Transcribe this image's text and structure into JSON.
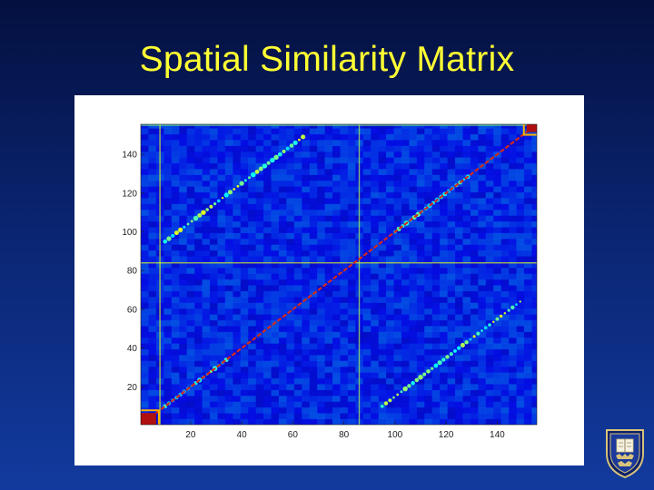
{
  "slide": {
    "title": "Spatial Similarity Matrix"
  },
  "colors": {
    "title": "#ffff33",
    "matrix_background": "#0a1fbe",
    "diagonal": "#d42a1a",
    "block_high": "#b01010"
  },
  "chart_data": {
    "type": "heatmap",
    "title": "",
    "xlabel": "",
    "ylabel": "",
    "colormap": "jet",
    "matrix_size": 155,
    "xlim": [
      0.5,
      155.5
    ],
    "ylim": [
      0.5,
      155.5
    ],
    "x_ticks": [
      20,
      40,
      60,
      80,
      100,
      120,
      140
    ],
    "y_ticks": [
      20,
      40,
      60,
      80,
      100,
      120,
      140
    ],
    "x_tick_labels": [
      "20",
      "40",
      "60",
      "80",
      "100",
      "120",
      "140"
    ],
    "y_tick_labels": [
      "20",
      "40",
      "60",
      "80",
      "100",
      "120",
      "140"
    ],
    "diagonal_value": 1.0,
    "off_diagonal_bands": [
      {
        "x_start": 10,
        "y_start": 95,
        "length": 55,
        "value": 0.55
      },
      {
        "x_start": 95,
        "y_start": 10,
        "length": 55,
        "value": 0.55
      },
      {
        "x_start": 10,
        "y_start": 10,
        "length": 25,
        "value": 0.45
      },
      {
        "x_start": 100,
        "y_start": 100,
        "length": 30,
        "value": 0.45
      }
    ],
    "high_blocks": [
      {
        "x_range": [
          1,
          6
        ],
        "y_range": [
          1,
          6
        ],
        "value": 0.95
      },
      {
        "x_range": [
          152,
          155
        ],
        "y_range": [
          152,
          155
        ],
        "value": 0.95
      }
    ],
    "bright_lines": [
      {
        "orientation": "vertical",
        "x": 8,
        "value": 0.6
      },
      {
        "orientation": "vertical",
        "x": 86,
        "value": 0.55
      },
      {
        "orientation": "horizontal",
        "y": 84,
        "value": 0.6
      },
      {
        "orientation": "horizontal",
        "y": 155,
        "value": 0.5
      }
    ]
  },
  "logo": {
    "name": "university-seal-icon"
  }
}
